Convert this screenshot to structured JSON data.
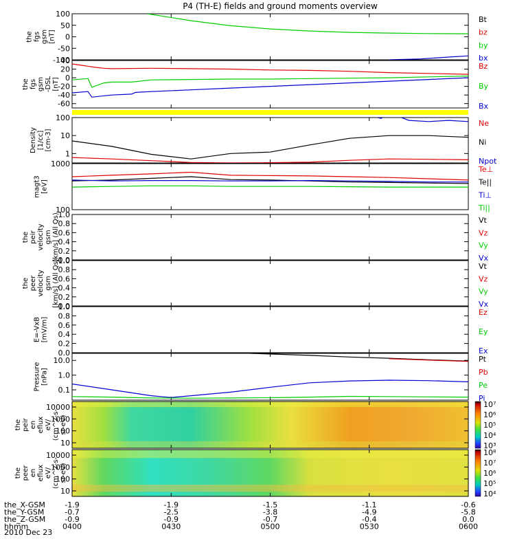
{
  "title": "P4 (TH-E) fields and ground moments overview",
  "date_label": "2010 Dec 23",
  "colors": {
    "black": "#000000",
    "red": "#e00000",
    "green": "#00cc00",
    "blue": "#0000d0",
    "yellow": "#ffff00"
  },
  "chart_data": [
    {
      "type": "line",
      "name": "fgs_gsm",
      "ylabel": [
        "the",
        "fgs",
        "gsm",
        "[nT]"
      ],
      "yticks": [
        "100",
        "50",
        "0",
        "-50",
        "-100"
      ],
      "ylim": [
        -100,
        100
      ],
      "legend": [
        {
          "label": "Bt",
          "color": "black"
        },
        {
          "label": "bz",
          "color": "red"
        },
        {
          "label": "by",
          "color": "green"
        },
        {
          "label": "bx",
          "color": "blue"
        }
      ],
      "series": [
        {
          "name": "by",
          "color": "green",
          "x": [
            0.19,
            0.3,
            0.4,
            0.5,
            0.6,
            0.7,
            0.8,
            0.9,
            1.0
          ],
          "y": [
            100,
            70,
            48,
            34,
            25,
            19,
            16,
            14,
            13
          ]
        },
        {
          "name": "bx",
          "color": "blue",
          "x": [
            0.8,
            0.88,
            0.95,
            1.0
          ],
          "y": [
            -100,
            -96,
            -88,
            -83
          ]
        }
      ]
    },
    {
      "type": "line",
      "name": "fgs_gsm_dsl",
      "ylabel": [
        "the",
        "fgs",
        "gsm",
        "-DSL",
        "[nT]"
      ],
      "yticks": [
        "40",
        "20",
        "0",
        "-20",
        "-40",
        "-60"
      ],
      "ylim": [
        -70,
        40
      ],
      "legend": [
        {
          "label": "Bz",
          "color": "red"
        },
        {
          "label": "By",
          "color": "green"
        },
        {
          "label": "Bx",
          "color": "blue"
        }
      ],
      "series": [
        {
          "name": "Bz",
          "color": "red",
          "x": [
            0,
            0.03,
            0.06,
            0.08,
            0.1,
            0.2,
            0.3,
            0.4,
            0.5,
            0.6,
            0.7,
            0.8,
            0.9,
            1.0
          ],
          "y": [
            32,
            28,
            24,
            22,
            21,
            22,
            21,
            20,
            18,
            17,
            15,
            12,
            10,
            8
          ]
        },
        {
          "name": "By",
          "color": "green",
          "x": [
            0,
            0.04,
            0.05,
            0.08,
            0.1,
            0.15,
            0.2,
            0.3,
            0.4,
            0.5,
            0.6,
            0.7,
            0.8,
            0.9,
            1.0
          ],
          "y": [
            -5,
            -2,
            -22,
            -12,
            -10,
            -10,
            -5,
            -4,
            -3,
            -3,
            -2,
            -1,
            0,
            2,
            4
          ]
        },
        {
          "name": "Bx",
          "color": "blue",
          "x": [
            0,
            0.04,
            0.05,
            0.1,
            0.15,
            0.16,
            0.2,
            0.3,
            0.4,
            0.5,
            0.6,
            0.7,
            0.8,
            0.9,
            1.0
          ],
          "y": [
            -35,
            -32,
            -45,
            -40,
            -38,
            -34,
            -32,
            -28,
            -24,
            -20,
            -16,
            -12,
            -8,
            -4,
            0
          ]
        }
      ]
    },
    {
      "type": "line",
      "name": "density",
      "ylabel": [
        "Density",
        "[1/cc]",
        "[cm-3]"
      ],
      "yticks": [
        "100",
        "10",
        "1"
      ],
      "ylim": [
        0.3,
        100
      ],
      "scale": "log",
      "legend": [
        {
          "label": "Ne",
          "color": "red"
        },
        {
          "label": "Ni",
          "color": "black"
        },
        {
          "label": "Npot",
          "color": "blue"
        }
      ],
      "series": [
        {
          "name": "Ni",
          "color": "black",
          "x": [
            0,
            0.1,
            0.2,
            0.3,
            0.4,
            0.5,
            0.6,
            0.7,
            0.8,
            0.9,
            1.0
          ],
          "y": [
            5,
            2.5,
            0.9,
            0.5,
            1.0,
            1.2,
            3,
            7,
            10,
            10,
            8
          ]
        },
        {
          "name": "Ne",
          "color": "red",
          "x": [
            0,
            0.1,
            0.2,
            0.3,
            0.4,
            0.5,
            0.6,
            0.7,
            0.8,
            0.9,
            1.0
          ],
          "y": [
            0.6,
            0.5,
            0.4,
            0.32,
            0.3,
            0.31,
            0.33,
            0.42,
            0.5,
            0.48,
            0.45
          ]
        },
        {
          "name": "Npot",
          "color": "blue",
          "x": [
            0.74,
            0.78,
            0.8,
            0.85,
            0.9,
            0.95,
            1.0
          ],
          "y": [
            150,
            90,
            180,
            70,
            60,
            70,
            60
          ]
        }
      ]
    },
    {
      "type": "line",
      "name": "temperature",
      "ylabel": [
        "magt3",
        "[eV]"
      ],
      "yticks": [
        "1000",
        "100"
      ],
      "ylim": [
        100,
        1000
      ],
      "scale": "log",
      "legend": [
        {
          "label": "Te⊥",
          "color": "red"
        },
        {
          "label": "Te||",
          "color": "black"
        },
        {
          "label": "Ti⊥",
          "color": "blue"
        },
        {
          "label": "Ti||",
          "color": "green"
        }
      ],
      "series": [
        {
          "name": "Te⊥",
          "color": "red",
          "x": [
            0,
            0.1,
            0.2,
            0.3,
            0.4,
            0.5,
            0.6,
            0.7,
            0.8,
            0.9,
            1.0
          ],
          "y": [
            520,
            560,
            600,
            650,
            560,
            550,
            540,
            520,
            500,
            470,
            440
          ]
        },
        {
          "name": "Te||",
          "color": "black",
          "x": [
            0,
            0.1,
            0.2,
            0.3,
            0.4,
            0.5,
            0.6,
            0.7,
            0.8,
            0.9,
            1.0
          ],
          "y": [
            420,
            440,
            480,
            520,
            450,
            440,
            420,
            400,
            390,
            380,
            370
          ]
        },
        {
          "name": "Ti⊥",
          "color": "blue",
          "x": [
            0,
            0.1,
            0.2,
            0.3,
            0.4,
            0.5,
            0.6,
            0.7,
            0.8,
            0.9,
            1.0
          ],
          "y": [
            440,
            420,
            430,
            430,
            420,
            420,
            430,
            420,
            410,
            400,
            400
          ]
        },
        {
          "name": "Ti||",
          "color": "green",
          "x": [
            0,
            0.1,
            0.2,
            0.3,
            0.4,
            0.5,
            0.6,
            0.7,
            0.8,
            0.9,
            1.0
          ],
          "y": [
            310,
            320,
            330,
            330,
            320,
            320,
            320,
            315,
            310,
            310,
            310
          ]
        }
      ]
    },
    {
      "type": "line",
      "name": "peir_velocity",
      "ylabel": [
        "the",
        "peir",
        "velocity",
        "gsm",
        "[km/s] (All Qs)"
      ],
      "yticks": [
        "1.0",
        "0.8",
        "0.6",
        "0.4",
        "0.2",
        "0.0"
      ],
      "ylim": [
        0,
        1
      ],
      "legend": [
        {
          "label": "Vt",
          "color": "black"
        },
        {
          "label": "Vz",
          "color": "red"
        },
        {
          "label": "Vy",
          "color": "green"
        },
        {
          "label": "Vx",
          "color": "blue"
        }
      ],
      "series": []
    },
    {
      "type": "line",
      "name": "peer_velocity",
      "ylabel": [
        "the",
        "peer",
        "velocity",
        "gsm",
        "[km/s] (All Qs)"
      ],
      "yticks": [
        "1.0",
        "0.8",
        "0.6",
        "0.4",
        "0.2",
        "0.0"
      ],
      "ylim": [
        0,
        1
      ],
      "legend": [
        {
          "label": "Vt",
          "color": "black"
        },
        {
          "label": "Vz",
          "color": "red"
        },
        {
          "label": "Vy",
          "color": "green"
        },
        {
          "label": "Vx",
          "color": "blue"
        }
      ],
      "series": []
    },
    {
      "type": "line",
      "name": "e_field",
      "ylabel": [
        "E=-VxB",
        "[mV/m]"
      ],
      "yticks": [
        "1.0",
        "0.8",
        "0.6",
        "0.4",
        "0.2",
        "0.0"
      ],
      "ylim": [
        0,
        1
      ],
      "legend": [
        {
          "label": "Ez",
          "color": "red"
        },
        {
          "label": "Ey",
          "color": "green"
        },
        {
          "label": "Ex",
          "color": "blue"
        }
      ],
      "series": []
    },
    {
      "type": "line",
      "name": "pressure",
      "ylabel": [
        "Pressure",
        "[nPa]"
      ],
      "yticks": [
        "10.0",
        "1.0",
        "0.1"
      ],
      "ylim": [
        0.02,
        30
      ],
      "scale": "log",
      "legend": [
        {
          "label": "Pt",
          "color": "black"
        },
        {
          "label": "Pb",
          "color": "red"
        },
        {
          "label": "Pe",
          "color": "green"
        },
        {
          "label": "Pi",
          "color": "blue"
        }
      ],
      "series": [
        {
          "name": "Pt",
          "color": "black",
          "x": [
            0.45,
            0.6,
            0.7,
            0.8,
            0.9,
            1.0
          ],
          "y": [
            30,
            22,
            17,
            14,
            11,
            9
          ]
        },
        {
          "name": "Pb",
          "color": "red",
          "x": [
            0.8,
            0.9,
            1.0
          ],
          "y": [
            13,
            10.5,
            8.5
          ]
        },
        {
          "name": "Pi",
          "color": "blue",
          "x": [
            0,
            0.1,
            0.2,
            0.25,
            0.3,
            0.4,
            0.5,
            0.6,
            0.7,
            0.8,
            0.9,
            1.0
          ],
          "y": [
            0.25,
            0.1,
            0.04,
            0.03,
            0.04,
            0.07,
            0.15,
            0.3,
            0.4,
            0.45,
            0.42,
            0.35
          ]
        },
        {
          "name": "Pe",
          "color": "green",
          "x": [
            0,
            0.1,
            0.2,
            0.3,
            0.4,
            0.5,
            0.6,
            0.7,
            0.8,
            0.9,
            1.0
          ],
          "y": [
            0.035,
            0.032,
            0.028,
            0.027,
            0.028,
            0.029,
            0.032,
            0.036,
            0.035,
            0.033,
            0.032
          ]
        }
      ]
    },
    {
      "type": "heatmap",
      "name": "peir_eflux",
      "ylabel": [
        "the",
        "peir",
        "en",
        "eflux",
        "eV/",
        "(cm^2-s-",
        "sr-eV)"
      ],
      "yticks": [
        "10000",
        "1000",
        "100",
        "10"
      ],
      "colorbar": [
        "10⁷",
        "10⁶",
        "10⁵",
        "10⁴",
        "10³"
      ]
    },
    {
      "type": "heatmap",
      "name": "peer_eflux",
      "ylabel": [
        "the",
        "peer",
        "en",
        "eflux",
        "eV/",
        "(cm^2-s-",
        "sr-eV)"
      ],
      "yticks": [
        "10000",
        "1000",
        "100",
        "10"
      ],
      "colorbar": [
        "10⁸",
        "10⁷",
        "10⁶",
        "10⁵",
        "10⁴"
      ]
    }
  ],
  "xaxis": {
    "labels": [
      "the_X-GSM",
      "the_Y-GSM",
      "the_Z-GSM",
      "hhmm"
    ],
    "ticks": [
      {
        "x": 0,
        "vals": [
          "-1.9",
          "-0.7",
          "-0.9",
          "0400"
        ]
      },
      {
        "x": 0.25,
        "vals": [
          "-1.9",
          "-2.5",
          "-0.9",
          "0430"
        ]
      },
      {
        "x": 0.5,
        "vals": [
          "-1.5",
          "-3.8",
          "-0.7",
          "0500"
        ]
      },
      {
        "x": 0.75,
        "vals": [
          "-1.1",
          "-4.9",
          "-0.4",
          "0530"
        ]
      },
      {
        "x": 1,
        "vals": [
          "-0.6",
          "-5.8",
          "0.0",
          "0600"
        ]
      }
    ]
  }
}
